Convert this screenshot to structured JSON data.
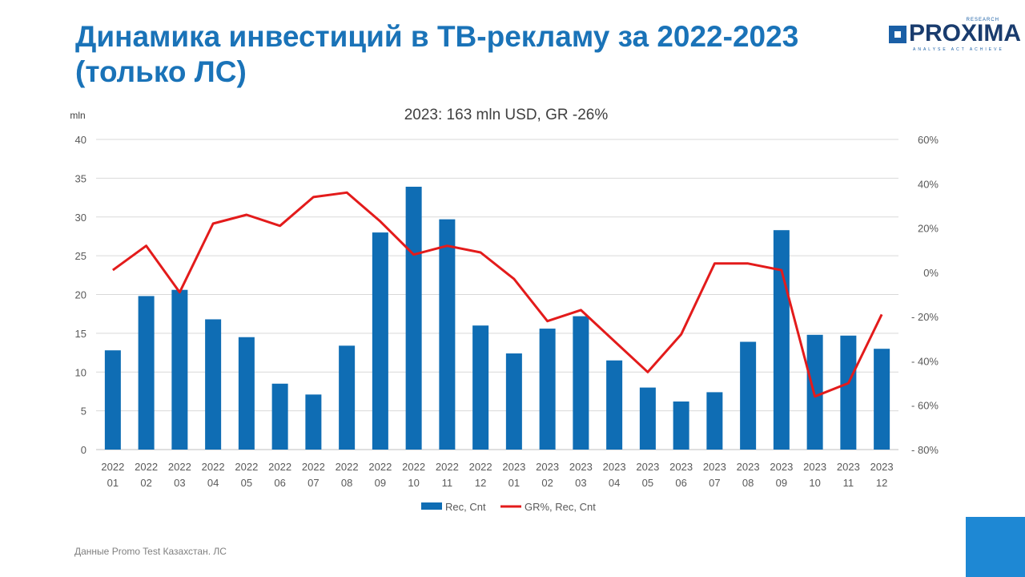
{
  "slide": {
    "title": "Динамика инвестиций в ТВ-рекламу за 2022-2023 (только ЛС)",
    "footnote": "Данные Promo Test Казахстан. ЛС",
    "logo": {
      "name": "PROXIMA",
      "research": "RESEARCH",
      "tagline": "ANALYSE ACT ACHIEVE"
    }
  },
  "colors": {
    "bars": "#0f6db4",
    "line": "#e31b1b",
    "title": "#1a73b8",
    "corner": "#1e88d4"
  },
  "chart_data": {
    "type": "bar",
    "title": "2023: 163 mln USD, GR -26%",
    "ylabel": "mln",
    "ylim": [
      0,
      40
    ],
    "y_ticks": [
      "0",
      "5",
      "10",
      "15",
      "20",
      "25",
      "30",
      "35",
      "40"
    ],
    "y2lim": [
      -80,
      60
    ],
    "y2_ticks": [
      "- 80%",
      "- 60%",
      "- 40%",
      "- 20%",
      "0%",
      "20%",
      "40%",
      "60%"
    ],
    "grid": true,
    "legend_position": "bottom",
    "categories": [
      [
        "2022",
        "01"
      ],
      [
        "2022",
        "02"
      ],
      [
        "2022",
        "03"
      ],
      [
        "2022",
        "04"
      ],
      [
        "2022",
        "05"
      ],
      [
        "2022",
        "06"
      ],
      [
        "2022",
        "07"
      ],
      [
        "2022",
        "08"
      ],
      [
        "2022",
        "09"
      ],
      [
        "2022",
        "10"
      ],
      [
        "2022",
        "11"
      ],
      [
        "2022",
        "12"
      ],
      [
        "2023",
        "01"
      ],
      [
        "2023",
        "02"
      ],
      [
        "2023",
        "03"
      ],
      [
        "2023",
        "04"
      ],
      [
        "2023",
        "05"
      ],
      [
        "2023",
        "06"
      ],
      [
        "2023",
        "07"
      ],
      [
        "2023",
        "08"
      ],
      [
        "2023",
        "09"
      ],
      [
        "2023",
        "10"
      ],
      [
        "2023",
        "11"
      ],
      [
        "2023",
        "12"
      ]
    ],
    "series": [
      {
        "name": "Rec, Cnt",
        "type": "bar",
        "axis": "left",
        "values": [
          12.8,
          19.8,
          20.6,
          16.8,
          14.5,
          8.5,
          7.1,
          13.4,
          28.0,
          33.9,
          29.7,
          16.0,
          12.4,
          15.6,
          17.2,
          11.5,
          8.0,
          6.2,
          7.4,
          13.9,
          28.3,
          14.8,
          14.7,
          13.0
        ]
      },
      {
        "name": "GR%, Rec, Cnt",
        "type": "line",
        "axis": "right",
        "values": [
          1,
          12,
          -9,
          22,
          26,
          21,
          34,
          36,
          23,
          8,
          12,
          9,
          -3,
          -22,
          -17,
          -31,
          -45,
          -28,
          4,
          4,
          1,
          -56,
          -50,
          -19
        ]
      }
    ]
  }
}
